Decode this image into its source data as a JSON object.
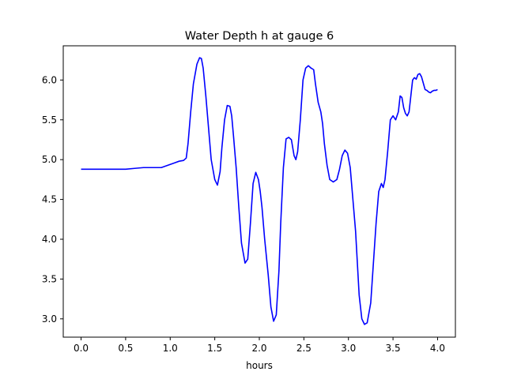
{
  "chart_data": {
    "type": "line",
    "title": "Water Depth h at gauge 6",
    "xlabel": "hours",
    "ylabel": "",
    "xlim": [
      -0.2,
      4.2
    ],
    "ylim": [
      2.77,
      6.43
    ],
    "xticks": [
      0.0,
      0.5,
      1.0,
      1.5,
      2.0,
      2.5,
      3.0,
      3.5,
      4.0
    ],
    "xtick_labels": [
      "0.0",
      "0.5",
      "1.0",
      "1.5",
      "2.0",
      "2.5",
      "3.0",
      "3.5",
      "4.0"
    ],
    "yticks": [
      3.0,
      3.5,
      4.0,
      4.5,
      5.0,
      5.5,
      6.0
    ],
    "ytick_labels": [
      "3.0",
      "3.5",
      "4.0",
      "4.5",
      "5.0",
      "5.5",
      "6.0"
    ],
    "grid": false,
    "legend": false,
    "series": [
      {
        "color": "#0000ff",
        "x": [
          0.0,
          0.2,
          0.4,
          0.5,
          0.6,
          0.7,
          0.8,
          0.9,
          0.95,
          1.0,
          1.05,
          1.1,
          1.15,
          1.18,
          1.2,
          1.23,
          1.26,
          1.3,
          1.33,
          1.35,
          1.37,
          1.4,
          1.43,
          1.46,
          1.5,
          1.53,
          1.56,
          1.58,
          1.61,
          1.64,
          1.67,
          1.69,
          1.71,
          1.74,
          1.77,
          1.8,
          1.84,
          1.87,
          1.9,
          1.93,
          1.96,
          1.99,
          2.01,
          2.03,
          2.06,
          2.1,
          2.13,
          2.16,
          2.19,
          2.22,
          2.24,
          2.27,
          2.3,
          2.33,
          2.36,
          2.39,
          2.41,
          2.43,
          2.46,
          2.49,
          2.52,
          2.55,
          2.58,
          2.61,
          2.63,
          2.66,
          2.69,
          2.71,
          2.73,
          2.76,
          2.79,
          2.83,
          2.87,
          2.9,
          2.93,
          2.96,
          2.99,
          3.02,
          3.05,
          3.08,
          3.1,
          3.12,
          3.15,
          3.18,
          3.21,
          3.25,
          3.28,
          3.31,
          3.34,
          3.37,
          3.39,
          3.41,
          3.44,
          3.47,
          3.5,
          3.53,
          3.56,
          3.58,
          3.6,
          3.62,
          3.64,
          3.66,
          3.68,
          3.7,
          3.72,
          3.74,
          3.76,
          3.78,
          3.8,
          3.82,
          3.84,
          3.86,
          3.88,
          3.9,
          3.92,
          3.94,
          3.96,
          3.98,
          4.0
        ],
        "y": [
          4.88,
          4.88,
          4.88,
          4.88,
          4.89,
          4.9,
          4.9,
          4.9,
          4.92,
          4.94,
          4.96,
          4.98,
          4.99,
          5.02,
          5.2,
          5.6,
          5.95,
          6.2,
          6.28,
          6.27,
          6.15,
          5.8,
          5.4,
          5.0,
          4.75,
          4.68,
          4.85,
          5.15,
          5.5,
          5.68,
          5.67,
          5.55,
          5.3,
          4.9,
          4.4,
          3.95,
          3.7,
          3.75,
          4.2,
          4.7,
          4.84,
          4.75,
          4.6,
          4.4,
          4.0,
          3.55,
          3.15,
          2.97,
          3.05,
          3.6,
          4.2,
          4.9,
          5.26,
          5.28,
          5.25,
          5.05,
          5.0,
          5.1,
          5.5,
          6.0,
          6.15,
          6.18,
          6.15,
          6.13,
          5.95,
          5.72,
          5.6,
          5.45,
          5.2,
          4.93,
          4.75,
          4.72,
          4.75,
          4.88,
          5.05,
          5.12,
          5.08,
          4.9,
          4.5,
          4.1,
          3.7,
          3.3,
          3.0,
          2.93,
          2.95,
          3.2,
          3.7,
          4.2,
          4.6,
          4.7,
          4.65,
          4.75,
          5.1,
          5.5,
          5.55,
          5.5,
          5.6,
          5.8,
          5.78,
          5.65,
          5.58,
          5.55,
          5.6,
          5.8,
          6.0,
          6.03,
          6.01,
          6.07,
          6.08,
          6.04,
          5.96,
          5.88,
          5.87,
          5.85,
          5.84,
          5.86,
          5.87,
          5.87,
          5.88
        ]
      }
    ]
  }
}
